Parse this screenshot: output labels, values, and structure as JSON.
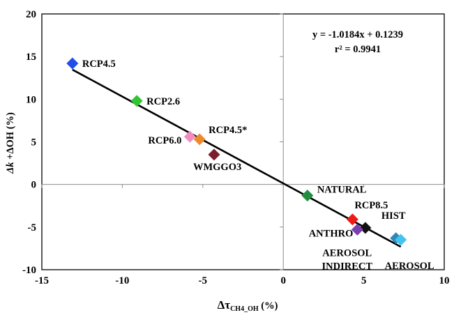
{
  "chart_data": {
    "type": "scatter",
    "title": "",
    "xlabel": {
      "main": "Δτ",
      "sub": "CH4_OH",
      "unit": " (%)"
    },
    "ylabel": {
      "italic": "Δk",
      "rest": " +ΔOH (%)"
    },
    "xlim": [
      -15,
      10
    ],
    "ylim": [
      -10,
      20
    ],
    "xticks": [
      -15,
      -10,
      -5,
      0,
      5,
      10
    ],
    "yticks": [
      -10,
      -5,
      0,
      5,
      10,
      15,
      20
    ],
    "grid": false,
    "legend": "none",
    "points": [
      {
        "label": "RCP4.5",
        "x": -13.1,
        "y": 14.2,
        "color": "#1f4fe6"
      },
      {
        "label": "RCP2.6",
        "x": -9.1,
        "y": 9.8,
        "color": "#33c433"
      },
      {
        "label": "RCP6.0",
        "x": -5.8,
        "y": 5.6,
        "color": "#f08cc0"
      },
      {
        "label": "RCP4.5*",
        "x": -5.2,
        "y": 5.3,
        "color": "#ee8a2a"
      },
      {
        "label": "WMGGO3",
        "x": -4.3,
        "y": 3.5,
        "color": "#7a1f2b"
      },
      {
        "label": "NATURAL",
        "x": 1.5,
        "y": -1.3,
        "color": "#1f8f3f"
      },
      {
        "label": "RCP8.5",
        "x": 4.3,
        "y": -4.1,
        "color": "#ee1a1a"
      },
      {
        "label": "HIST",
        "x": 5.1,
        "y": -5.1,
        "color": "#111111"
      },
      {
        "label": "ANTHRO",
        "x": 4.6,
        "y": -5.3,
        "color": "#7a3fb0"
      },
      {
        "label": "AEROSOL INDIRECT",
        "x": 7.0,
        "y": -6.3,
        "color": "#2f86b8"
      },
      {
        "label": "AEROSOL",
        "x": 7.3,
        "y": -6.5,
        "color": "#45c3f0"
      }
    ],
    "trendline": {
      "slope": -1.0184,
      "intercept": 0.1239,
      "x_range": [
        -13.1,
        7.3
      ],
      "equation": "y = -1.0184x + 0.1239",
      "r2_label": "r² = 0.9941"
    }
  }
}
